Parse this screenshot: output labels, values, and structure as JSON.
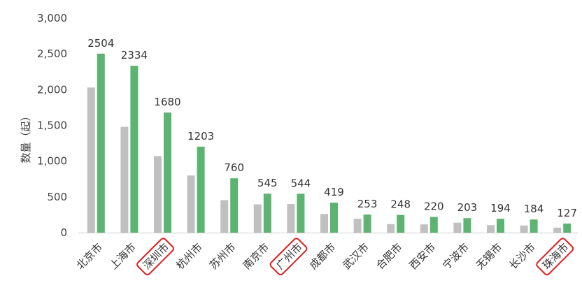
{
  "chart_data": {
    "type": "bar",
    "ylabel": "数量（起）",
    "ylim": [
      0,
      3000
    ],
    "yticks": [
      "0",
      "500",
      "1,000",
      "1,500",
      "2,000",
      "2,500",
      "3,000"
    ],
    "grid": false,
    "categories": [
      "北京市",
      "上海市",
      "深圳市",
      "杭州市",
      "苏州市",
      "南京市",
      "广州市",
      "成都市",
      "武汉市",
      "合肥市",
      "西安市",
      "宁波市",
      "无锡市",
      "长沙市",
      "珠海市"
    ],
    "highlighted_categories": [
      "深圳市",
      "广州市",
      "珠海市"
    ],
    "series": [
      {
        "color": "#c0c0c0",
        "values": [
          2030,
          1480,
          1070,
          800,
          455,
          395,
          400,
          260,
          195,
          120,
          115,
          140,
          105,
          100,
          70
        ],
        "labels": [
          "",
          "",
          "",
          "",
          "",
          "",
          "",
          "",
          "",
          "",
          "",
          "",
          "",
          "",
          ""
        ]
      },
      {
        "color": "#5db371",
        "values": [
          2504,
          2334,
          1680,
          1203,
          760,
          545,
          544,
          419,
          253,
          248,
          220,
          203,
          194,
          184,
          127
        ],
        "labels": [
          "2504",
          "2334",
          "1680",
          "1203",
          "760",
          "545",
          "544",
          "419",
          "253",
          "248",
          "220",
          "203",
          "194",
          "184",
          "127"
        ]
      }
    ],
    "highlight_color": "#e02020",
    "axis_color": "#d0d0d0"
  }
}
